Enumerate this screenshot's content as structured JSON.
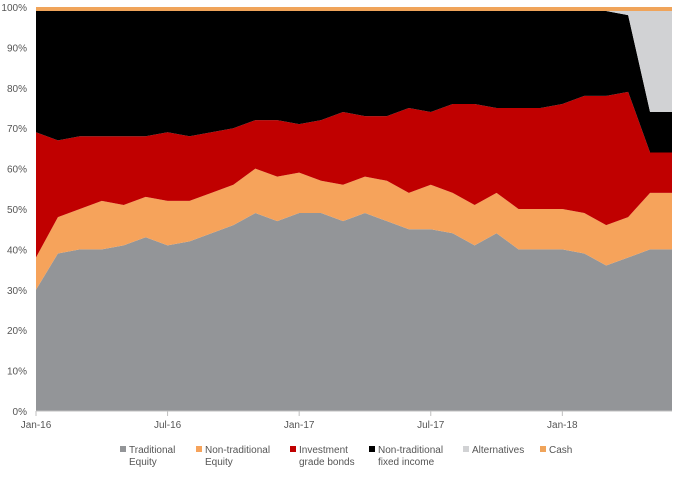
{
  "chart_data": {
    "type": "area",
    "stacked": true,
    "ylim": [
      0,
      100
    ],
    "y_ticks": [
      "0%",
      "10%",
      "20%",
      "30%",
      "40%",
      "50%",
      "60%",
      "70%",
      "80%",
      "90%",
      "100%"
    ],
    "y_tick_values": [
      0,
      10,
      20,
      30,
      40,
      50,
      60,
      70,
      80,
      90,
      100
    ],
    "x_ticks": [
      "Jan-16",
      "Jul-16",
      "Jan-17",
      "Jul-17",
      "Jan-18"
    ],
    "x_tick_indices": [
      0,
      6,
      12,
      18,
      24
    ],
    "x": [
      "Jan-16",
      "Feb-16",
      "Mar-16",
      "Apr-16",
      "May-16",
      "Jun-16",
      "Jul-16",
      "Aug-16",
      "Sep-16",
      "Oct-16",
      "Nov-16",
      "Dec-16",
      "Jan-17",
      "Feb-17",
      "Mar-17",
      "Apr-17",
      "May-17",
      "Jun-17",
      "Jul-17",
      "Aug-17",
      "Sep-17",
      "Oct-17",
      "Nov-17",
      "Dec-17",
      "Jan-18",
      "Feb-18",
      "Mar-18",
      "Apr-18",
      "May-18",
      "Jun-18"
    ],
    "grid": false,
    "legend_position": "bottom",
    "series": [
      {
        "name": "Traditional Equity",
        "name_lines": [
          "Traditional",
          "Equity"
        ],
        "color": "#939598",
        "values": [
          30,
          39,
          40,
          40,
          41,
          43,
          41,
          42,
          44,
          46,
          49,
          47,
          49,
          49,
          47,
          49,
          47,
          45,
          45,
          44,
          41,
          44,
          40,
          40,
          40,
          39,
          36,
          38,
          40,
          40
        ]
      },
      {
        "name": "Non-traditional Equity",
        "name_lines": [
          "Non-traditional",
          "Equity"
        ],
        "color": "#f6a35b",
        "values": [
          8,
          9,
          10,
          12,
          10,
          10,
          11,
          10,
          10,
          10,
          11,
          11,
          10,
          8,
          9,
          9,
          10,
          9,
          11,
          10,
          10,
          10,
          10,
          10,
          10,
          10,
          10,
          10,
          14,
          14
        ]
      },
      {
        "name": "Investment grade bonds",
        "name_lines": [
          "Investment",
          "grade bonds"
        ],
        "color": "#c00000",
        "values": [
          31,
          19,
          18,
          16,
          17,
          15,
          17,
          16,
          15,
          14,
          12,
          14,
          12,
          15,
          18,
          15,
          16,
          21,
          18,
          22,
          25,
          21,
          25,
          25,
          26,
          29,
          32,
          31,
          10,
          10
        ]
      },
      {
        "name": "Non-traditional fixed income",
        "name_lines": [
          "Non-traditional",
          "fixed income"
        ],
        "color": "#000000",
        "values": [
          30,
          32,
          31,
          31,
          31,
          31,
          30,
          31,
          30,
          29,
          27,
          27,
          28,
          27,
          25,
          26,
          26,
          24,
          25,
          23,
          23,
          24,
          24,
          24,
          23,
          21,
          21,
          19,
          10,
          10
        ]
      },
      {
        "name": "Alternatives",
        "name_lines": [
          "Alternatives"
        ],
        "color": "#d1d2d4",
        "values": [
          0,
          0,
          0,
          0,
          0,
          0,
          0,
          0,
          0,
          0,
          0,
          0,
          0,
          0,
          0,
          0,
          0,
          0,
          0,
          0,
          0,
          0,
          0,
          0,
          0,
          0,
          0,
          1,
          25,
          25
        ]
      },
      {
        "name": "Cash",
        "name_lines": [
          "Cash"
        ],
        "color": "#f0a45a",
        "values": [
          1,
          1,
          1,
          1,
          1,
          1,
          1,
          1,
          1,
          1,
          1,
          1,
          1,
          1,
          1,
          1,
          1,
          1,
          1,
          1,
          1,
          1,
          1,
          1,
          1,
          1,
          1,
          1,
          1,
          1
        ]
      }
    ]
  }
}
